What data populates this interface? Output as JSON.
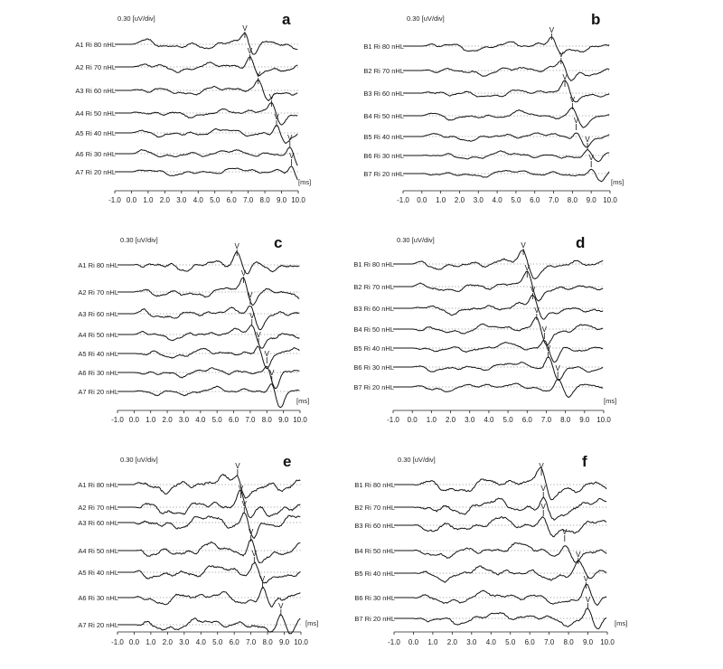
{
  "figure": {
    "panels": [
      {
        "letter": "a",
        "scale_label": "0.30 [uV/div]",
        "unit_label": "[ms]",
        "chart_data": {
          "type": "line",
          "title": "",
          "xlabel": "[ms]",
          "ylabel": "0.30 [uV/div]",
          "xlim": [
            -1.0,
            10.0
          ],
          "x_ticks": [
            "-1.0",
            "0.0",
            "1.0",
            "2.0",
            "3.0",
            "4.0",
            "5.0",
            "6.0",
            "7.0",
            "8.0",
            "9.0",
            "10.0"
          ],
          "traces": [
            {
              "label": "A1 Ri 80 nHL",
              "wave_v_latency": 6.8
            },
            {
              "label": "A2 Ri 70 nHL",
              "wave_v_latency": 7.1
            },
            {
              "label": "A3 Ri 60 nHL",
              "wave_v_latency": 7.6
            },
            {
              "label": "A4 Ri 50 nHL",
              "wave_v_latency": 8.4
            },
            {
              "label": "A5 Ri 40 nHL",
              "wave_v_latency": 8.7
            },
            {
              "label": "A6 Ri 30 nHL",
              "wave_v_latency": 9.5
            },
            {
              "label": "A7 Ri 20 nHL",
              "wave_v_latency": 9.6
            }
          ],
          "peak_marker": "V"
        }
      },
      {
        "letter": "b",
        "scale_label": "0.30 [uV/div]",
        "unit_label": "[ms]",
        "chart_data": {
          "type": "line",
          "title": "",
          "xlabel": "[ms]",
          "ylabel": "0.30 [uV/div]",
          "xlim": [
            -1.0,
            10.0
          ],
          "x_ticks": [
            "-1.0",
            "0.0",
            "1.0",
            "2.0",
            "3.0",
            "4.0",
            "5.0",
            "6.0",
            "7.0",
            "8.0",
            "9.0",
            "10.0"
          ],
          "traces": [
            {
              "label": "B1 Ri 80 nHL",
              "wave_v_latency": 6.9
            },
            {
              "label": "B2 Ri 70 nHL",
              "wave_v_latency": 7.4
            },
            {
              "label": "B3 Ri 60 nHL",
              "wave_v_latency": 7.6
            },
            {
              "label": "B4 Ri 50 nHL",
              "wave_v_latency": 8.0
            },
            {
              "label": "B5 Ri 40 nHL",
              "wave_v_latency": 8.2
            },
            {
              "label": "B6 Ri 30 nHL",
              "wave_v_latency": 8.8
            },
            {
              "label": "B7 Ri 20 nHL",
              "wave_v_latency": 9.0
            }
          ],
          "peak_marker": "V"
        }
      },
      {
        "letter": "c",
        "scale_label": "0.30 [uV/div]",
        "unit_label": "[ms]",
        "chart_data": {
          "type": "line",
          "title": "",
          "xlabel": "[ms]",
          "ylabel": "0.30 [uV/div]",
          "xlim": [
            -1.0,
            10.0
          ],
          "x_ticks": [
            "-1.0",
            "0.0",
            "1.0",
            "2.0",
            "3.0",
            "4.0",
            "5.0",
            "6.0",
            "7.0",
            "8.0",
            "9.0",
            "10.0"
          ],
          "traces": [
            {
              "label": "A1 Ri 80 nHL",
              "wave_v_latency": 6.2
            },
            {
              "label": "A2 Ri 70 nHL",
              "wave_v_latency": 6.6
            },
            {
              "label": "A3 Ri 60 nHL",
              "wave_v_latency": 7.0
            },
            {
              "label": "A4 Ri 50 nHL",
              "wave_v_latency": 7.1
            },
            {
              "label": "A5 Ri 40 nHL",
              "wave_v_latency": 7.5
            },
            {
              "label": "A6 Ri 30 nHL",
              "wave_v_latency": 8.0
            },
            {
              "label": "A7 Ri 20 nHL",
              "wave_v_latency": 8.3
            }
          ],
          "peak_marker": "V"
        }
      },
      {
        "letter": "d",
        "scale_label": "0.30 [uV/div]",
        "unit_label": "[ms]",
        "chart_data": {
          "type": "line",
          "title": "",
          "xlabel": "[ms]",
          "ylabel": "0.30 [uV/div]",
          "xlim": [
            -1.0,
            10.0
          ],
          "x_ticks": [
            "-1.0",
            "0.0",
            "1.0",
            "2.0",
            "3.0",
            "4.0",
            "5.0",
            "6.0",
            "7.0",
            "8.0",
            "9.0",
            "10.0"
          ],
          "traces": [
            {
              "label": "B1 Ri 80 nHL",
              "wave_v_latency": 5.8
            },
            {
              "label": "B2 Ri 70 nHL",
              "wave_v_latency": 6.0
            },
            {
              "label": "B3 Ri 60 nHL",
              "wave_v_latency": 6.3
            },
            {
              "label": "B4 Ri 50 nHL",
              "wave_v_latency": 6.5
            },
            {
              "label": "B5 Ri 40 nHL",
              "wave_v_latency": 6.9
            },
            {
              "label": "B6 Ri 30 nHL",
              "wave_v_latency": 7.1
            },
            {
              "label": "B7 Ri 20 nHL",
              "wave_v_latency": 7.6
            }
          ],
          "peak_marker": "V"
        }
      },
      {
        "letter": "e",
        "scale_label": "0.30 [uV/div]",
        "unit_label": "[ms]",
        "chart_data": {
          "type": "line",
          "title": "",
          "xlabel": "[ms]",
          "ylabel": "0.30 [uV/div]",
          "xlim": [
            -1.0,
            10.0
          ],
          "x_ticks": [
            "-1.0",
            "0.0",
            "1.0",
            "2.0",
            "3.0",
            "4.0",
            "5.0",
            "6.0",
            "7.0",
            "8.0",
            "9.0",
            "10.0"
          ],
          "traces": [
            {
              "label": "A1 Ri 80 nHL",
              "wave_v_latency": 6.2
            },
            {
              "label": "A2 Ri 70 nHL",
              "wave_v_latency": 6.4
            },
            {
              "label": "A3 Ri 60 nHL",
              "wave_v_latency": 6.6
            },
            {
              "label": "A4 Ri 50 nHL",
              "wave_v_latency": 7.0
            },
            {
              "label": "A5 Ri 40 nHL",
              "wave_v_latency": 7.2
            },
            {
              "label": "A6 Ri 30 nHL",
              "wave_v_latency": 7.7
            },
            {
              "label": "A7 Ri 20 nHL",
              "wave_v_latency": 8.8
            }
          ],
          "peak_marker": "V"
        }
      },
      {
        "letter": "f",
        "scale_label": "0.30 [uV/div]",
        "unit_label": "[ms]",
        "chart_data": {
          "type": "line",
          "title": "",
          "xlabel": "[ms]",
          "ylabel": "0.30 [uV/div]",
          "xlim": [
            -1.0,
            10.0
          ],
          "x_ticks": [
            "-1.0",
            "0.0",
            "1.0",
            "2.0",
            "3.0",
            "4.0",
            "5.0",
            "6.0",
            "7.0",
            "8.0",
            "9.0",
            "10.0"
          ],
          "traces": [
            {
              "label": "B1 Ri 80 nHL",
              "wave_v_latency": 6.6
            },
            {
              "label": "B2 Ri 70 nHL",
              "wave_v_latency": 6.7
            },
            {
              "label": "B3 Ri 60 nHL",
              "wave_v_latency": 6.7
            },
            {
              "label": "B4 Ri 50 nHL",
              "wave_v_latency": 7.8
            },
            {
              "label": "B5 Ri 40 nHL",
              "wave_v_latency": 8.5
            },
            {
              "label": "B6 Ri 30 nHL",
              "wave_v_latency": 8.9
            },
            {
              "label": "B7 Ri 20 nHL",
              "wave_v_latency": 9.0
            }
          ],
          "peak_marker": "V"
        }
      }
    ]
  }
}
